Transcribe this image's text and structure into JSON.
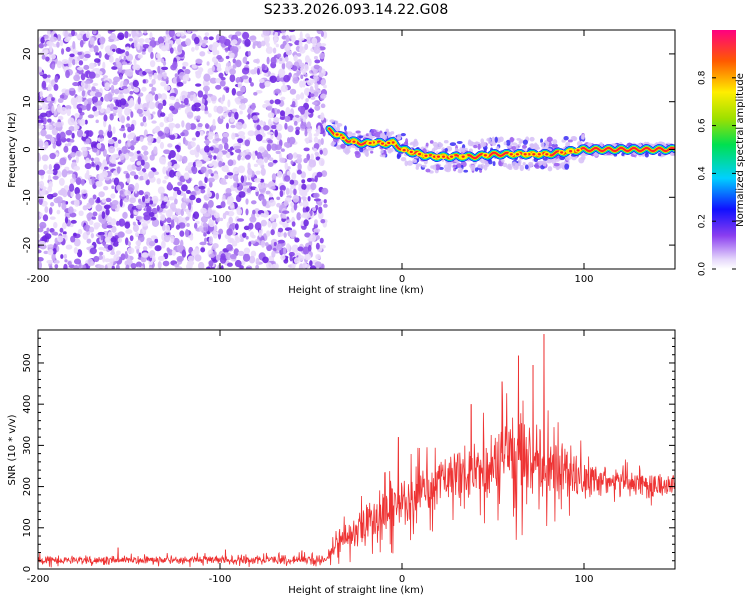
{
  "title": "S233.2026.093.14.22.G08",
  "chart_data": [
    {
      "type": "heatmap",
      "xlabel": "Height of straight line (km)",
      "ylabel": "Frequency (Hz)",
      "xlim": [
        -200,
        150
      ],
      "ylim": [
        -25,
        25
      ],
      "xticks": [
        -200,
        -100,
        0,
        100
      ],
      "yticks": [
        -20,
        -10,
        0,
        10,
        20
      ],
      "colorbar": {
        "label": "Normalized spectral amplitude",
        "range": [
          0,
          1
        ],
        "ticks": [
          0.0,
          0.2,
          0.4,
          0.6,
          0.8
        ]
      },
      "noise_region_x": [
        -200,
        -42
      ],
      "ridge": {
        "x": [
          -40,
          -35,
          -30,
          -25,
          -20,
          -15,
          -10,
          -5,
          0,
          5,
          10,
          15,
          20,
          30,
          40,
          50,
          60,
          70,
          80,
          90,
          100,
          110,
          120,
          130,
          140,
          150
        ],
        "freq": [
          4,
          3,
          2,
          1.5,
          1.2,
          1.5,
          1.2,
          1.5,
          0,
          -0.5,
          -1,
          -1.5,
          -1.5,
          -1.5,
          -1.5,
          -1,
          -1,
          -1,
          -1,
          -0.5,
          0,
          0,
          0,
          0,
          0,
          0
        ]
      }
    },
    {
      "type": "line",
      "series": [
        {
          "name": "SNR",
          "color": "#ee3333",
          "x": [
            -200,
            -150,
            -100,
            -60,
            -42,
            -35,
            -25,
            -15,
            -5,
            5,
            15,
            25,
            35,
            45,
            55,
            65,
            75,
            85,
            95,
            105,
            115,
            125,
            135,
            150
          ],
          "mean": [
            22,
            22,
            22,
            22,
            22,
            60,
            95,
            125,
            150,
            175,
            200,
            220,
            235,
            250,
            260,
            265,
            255,
            240,
            230,
            220,
            215,
            210,
            205,
            205
          ],
          "spread": [
            10,
            10,
            10,
            10,
            12,
            30,
            45,
            55,
            65,
            60,
            65,
            75,
            80,
            90,
            100,
            110,
            100,
            85,
            60,
            45,
            35,
            30,
            30,
            30
          ]
        }
      ],
      "peaks": [
        {
          "x": -156,
          "y": 52
        },
        {
          "x": -97,
          "y": 47
        },
        {
          "x": -55,
          "y": 45
        },
        {
          "x": -2,
          "y": 320
        },
        {
          "x": 38,
          "y": 400
        },
        {
          "x": 55,
          "y": 455
        },
        {
          "x": 64,
          "y": 518
        },
        {
          "x": 72,
          "y": 495
        },
        {
          "x": 78,
          "y": 570
        }
      ],
      "xlabel": "Height of straight line (km)",
      "ylabel": "SNR (10 * v/v)",
      "xlim": [
        -200,
        150
      ],
      "ylim": [
        0,
        580
      ],
      "xticks": [
        -200,
        -100,
        0,
        100
      ],
      "yticks": [
        0,
        100,
        200,
        300,
        400,
        500
      ]
    }
  ]
}
